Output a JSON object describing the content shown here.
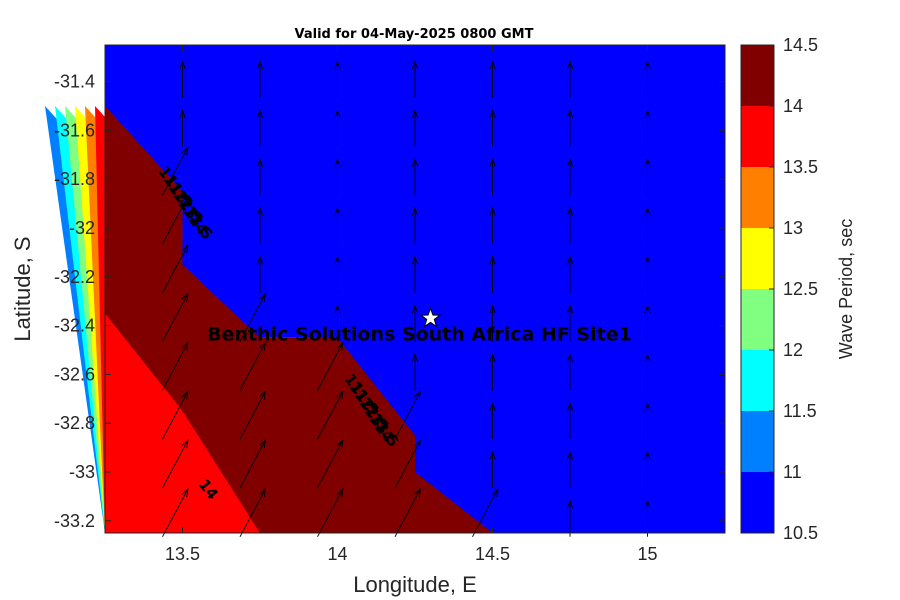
{
  "chart_data": {
    "type": "contour",
    "title": "Valid for 04-May-2025 0800 GMT",
    "xlabel": "Longitude, E",
    "ylabel": "Latitude, S",
    "xlim": [
      13.25,
      15.25
    ],
    "ylim": [
      -33.25,
      -31.25
    ],
    "x_ticks": [
      "13.5",
      "14",
      "14.5",
      "15"
    ],
    "x_tick_values": [
      13.5,
      14,
      14.5,
      15
    ],
    "y_ticks": [
      "-31.4",
      "-31.6",
      "-31.8",
      "-32",
      "-32.2",
      "-32.4",
      "-32.6",
      "-32.8",
      "-33",
      "-33.2"
    ],
    "y_tick_values": [
      -31.4,
      -31.6,
      -31.8,
      -32,
      -32.2,
      -32.4,
      -32.6,
      -32.8,
      -33,
      -33.2
    ],
    "colorbar": {
      "label": "Wave Period, sec",
      "levels": [
        10.5,
        11,
        11.5,
        12,
        12.5,
        13,
        13.5,
        14,
        14.5
      ],
      "tick_labels": [
        "10.5",
        "11",
        "11.5",
        "12",
        "12.5",
        "13",
        "13.5",
        "14",
        "14.5"
      ],
      "colors": [
        "#0000ff",
        "#0080ff",
        "#00ffff",
        "#80ff80",
        "#ffff00",
        "#ff8000",
        "#ff0000",
        "#800000"
      ]
    },
    "contour_fronts": [
      {
        "lon": 13.25,
        "lat": -31.5
      },
      {
        "lon": 13.5,
        "lat": -31.85
      },
      {
        "lon": 13.5,
        "lat": -32.15
      },
      {
        "lon": 13.75,
        "lat": -32.45
      },
      {
        "lon": 14.0,
        "lat": -32.45
      },
      {
        "lon": 14.25,
        "lat": -32.85
      },
      {
        "lon": 14.25,
        "lat": -33.0
      },
      {
        "lon": 14.5,
        "lat": -33.25
      }
    ],
    "red_region": [
      {
        "lon": 13.25,
        "lat": -32.35
      },
      {
        "lon": 13.5,
        "lat": -32.75
      },
      {
        "lon": 13.75,
        "lat": -33.25
      },
      {
        "lon": 13.25,
        "lat": -33.25
      }
    ],
    "contour_label_14": {
      "text": "14",
      "lon": 13.55,
      "lat": -33.05
    },
    "contour_label_groups": [
      {
        "lon": 13.42,
        "lat": -31.85,
        "labels": [
          "11",
          "11.5",
          "12",
          "12.5",
          "13",
          "13.5",
          "14"
        ]
      },
      {
        "lon": 14.02,
        "lat": -32.7,
        "labels": [
          "11",
          "11.5",
          "12",
          "12.5",
          "13",
          "13.5",
          "14"
        ]
      }
    ],
    "site": {
      "name": "Benthic Solutions South Africa HF Site1",
      "lon": 14.3,
      "lat": -32.37
    },
    "vectors": {
      "lon": [
        13.5,
        13.75,
        14.0,
        14.25,
        14.5,
        14.75,
        15.0
      ],
      "lat": [
        -31.4,
        -31.6,
        -31.8,
        -32.0,
        -32.2,
        -32.4,
        -32.6,
        -32.8,
        -33.0,
        -33.2
      ],
      "open_ocean_direction_deg": 0,
      "near_coast_direction_deg": 28
    }
  }
}
